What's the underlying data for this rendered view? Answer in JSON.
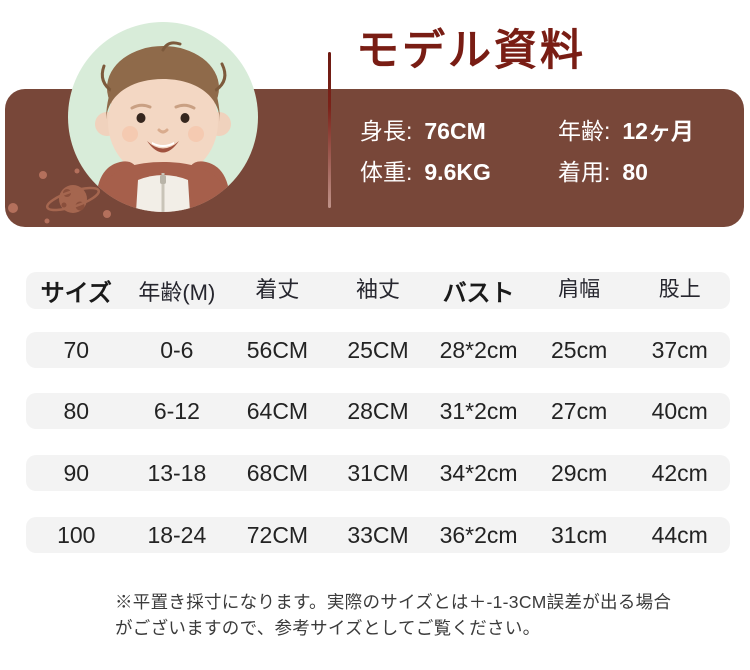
{
  "colors": {
    "panel_brown": "#784739",
    "title_maroon": "#791d14",
    "photo_green": "#d8ecd9",
    "band_gray": "#f3f3f3",
    "stat_text_white": "#ffffff",
    "table_text": "#232323",
    "note_text": "#3b3b3b",
    "planet_salmon": "#a5664f",
    "dot_salmon": "#b4705c"
  },
  "hero": {
    "title": "モデル資料",
    "photo_icon": "baby-model-photo",
    "planet_icon": "saturn-planet-doodle",
    "stats": [
      {
        "label": "身長:",
        "value": "76CM"
      },
      {
        "label": "年齢:",
        "value": "12ヶ月"
      },
      {
        "label": "体重:",
        "value": "9.6KG"
      },
      {
        "label": "着用:",
        "value": "80"
      }
    ]
  },
  "size_table": {
    "columns": [
      "サイズ",
      "年齢(M)",
      "着丈",
      "袖丈",
      "バスト",
      "肩幅",
      "股上"
    ],
    "rows": [
      [
        "70",
        "0-6",
        "56CM",
        "25CM",
        "28*2cm",
        "25cm",
        "37cm"
      ],
      [
        "80",
        "6-12",
        "64CM",
        "28CM",
        "31*2cm",
        "27cm",
        "40cm"
      ],
      [
        "90",
        "13-18",
        "68CM",
        "31CM",
        "34*2cm",
        "29cm",
        "42cm"
      ],
      [
        "100",
        "18-24",
        "72CM",
        "33CM",
        "36*2cm",
        "31cm",
        "44cm"
      ]
    ]
  },
  "footnote": {
    "lines": [
      "※平置き採寸になります。実際のサイズとは＋-1-3CM誤差が出る場合",
      "がございますので、参考サイズとしてご覧ください。"
    ]
  }
}
